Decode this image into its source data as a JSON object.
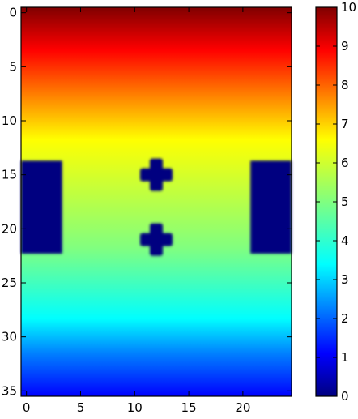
{
  "chart_data": {
    "type": "heatmap",
    "colormap": "jet",
    "x_range": [
      -0.5,
      24.5
    ],
    "y_range": [
      35.5,
      -0.5
    ],
    "x_ticks": [
      0,
      5,
      10,
      15,
      20
    ],
    "y_ticks": [
      0,
      5,
      10,
      15,
      20,
      25,
      30,
      35
    ],
    "colorbar": {
      "min": 0,
      "max": 10,
      "ticks": [
        0,
        1,
        2,
        3,
        4,
        5,
        6,
        7,
        8,
        9,
        10
      ]
    },
    "field": {
      "description_free": true,
      "top_value": 10,
      "bottom_value": 0,
      "gradient_direction": "vertical"
    },
    "obstacles": [
      {
        "shape": "rectangle",
        "x_from": -0.5,
        "x_to": 3.3,
        "y_from": 13.7,
        "y_to": 22.3,
        "value": 0
      },
      {
        "shape": "rectangle",
        "x_from": 20.7,
        "x_to": 24.5,
        "y_from": 13.7,
        "y_to": 22.3,
        "value": 0
      },
      {
        "shape": "cross",
        "x_center": 12,
        "y_center": 15,
        "arm_half_length": 1.5,
        "arm_half_width": 0.6,
        "value": 0
      },
      {
        "shape": "cross",
        "x_center": 12,
        "y_center": 21,
        "arm_half_length": 1.5,
        "arm_half_width": 0.6,
        "value": 0
      }
    ],
    "title": "",
    "xlabel": "",
    "ylabel": "",
    "grid": false
  }
}
